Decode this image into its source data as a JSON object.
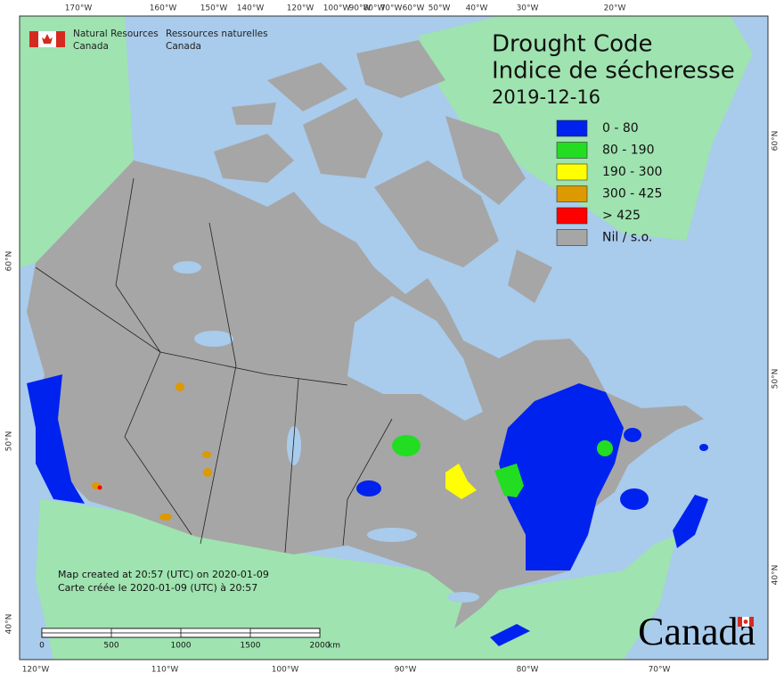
{
  "header": {
    "agency_en": [
      "Natural Resources",
      "Canada"
    ],
    "agency_fr": [
      "Ressources naturelles",
      "Canada"
    ]
  },
  "title": {
    "en": "Drought Code",
    "fr": "Indice de sécheresse",
    "date": "2019-12-16"
  },
  "legend": [
    {
      "label": "0 - 80",
      "color": "#0022ee"
    },
    {
      "label": "80 - 190",
      "color": "#22dd22"
    },
    {
      "label": "190 - 300",
      "color": "#ffff00"
    },
    {
      "label": "300 - 425",
      "color": "#dd9900"
    },
    {
      "label": "> 425",
      "color": "#ff0000"
    },
    {
      "label": "Nil / s.o.",
      "color": "#a6a6a6"
    }
  ],
  "graticule": {
    "top": [
      "170°W",
      "160°W",
      "150°W",
      "140°W",
      "120°W",
      "100°W",
      "90°W",
      "80°W",
      "70°W",
      "60°W",
      "50°W",
      "40°W",
      "30°W",
      "20°W"
    ],
    "bottom": [
      "120°W",
      "110°W",
      "100°W",
      "90°W",
      "80°W",
      "70°W"
    ],
    "left": [
      "60°N",
      "50°N",
      "40°N"
    ],
    "right": [
      "60°N",
      "50°N",
      "40°N"
    ]
  },
  "footnote": [
    "Map created at 20:57 (UTC) on 2020-01-09",
    "Carte créée le 2020-01-09 (UTC) à 20:57"
  ],
  "scale_bar": {
    "labels": [
      "0",
      "500",
      "1000",
      "1500",
      "2000"
    ],
    "unit": "km"
  },
  "wordmark": "Canada"
}
